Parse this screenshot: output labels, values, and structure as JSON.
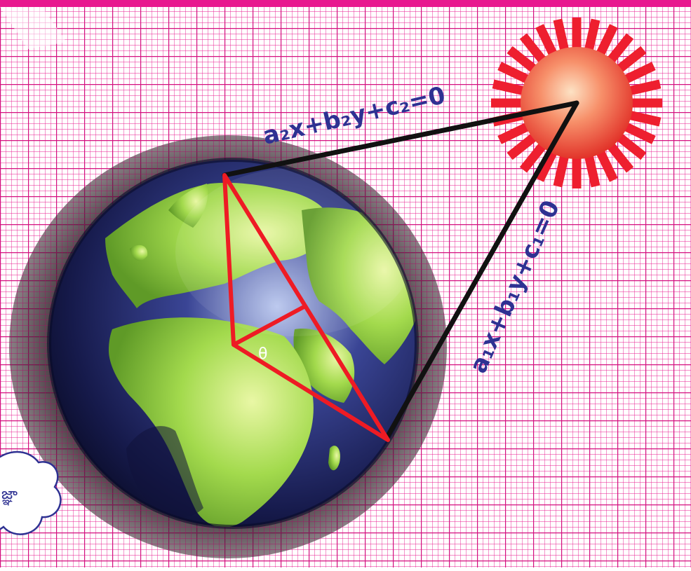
{
  "colors": {
    "grid_line": "#e8188f",
    "grid_bg": "#ffffff",
    "ocean": "#1b1f55",
    "land": "#9fd84a",
    "sun_rays": "#ee1f2f",
    "sun_core": "#f5734f",
    "red_lines": "#ee1b24",
    "black_lines": "#111111",
    "equation_text": "#2e3192"
  },
  "diagram": {
    "equation_top": "a₂x+b₂y+c₂=0",
    "equation_right": "a₁x+b₁y+c₁=0",
    "angle_label": "θ",
    "cloud_text": "జ్ఞా"
  },
  "icons": {
    "sun": "sun-icon",
    "earth": "earth-globe",
    "cloud": "thought-cloud-icon"
  }
}
